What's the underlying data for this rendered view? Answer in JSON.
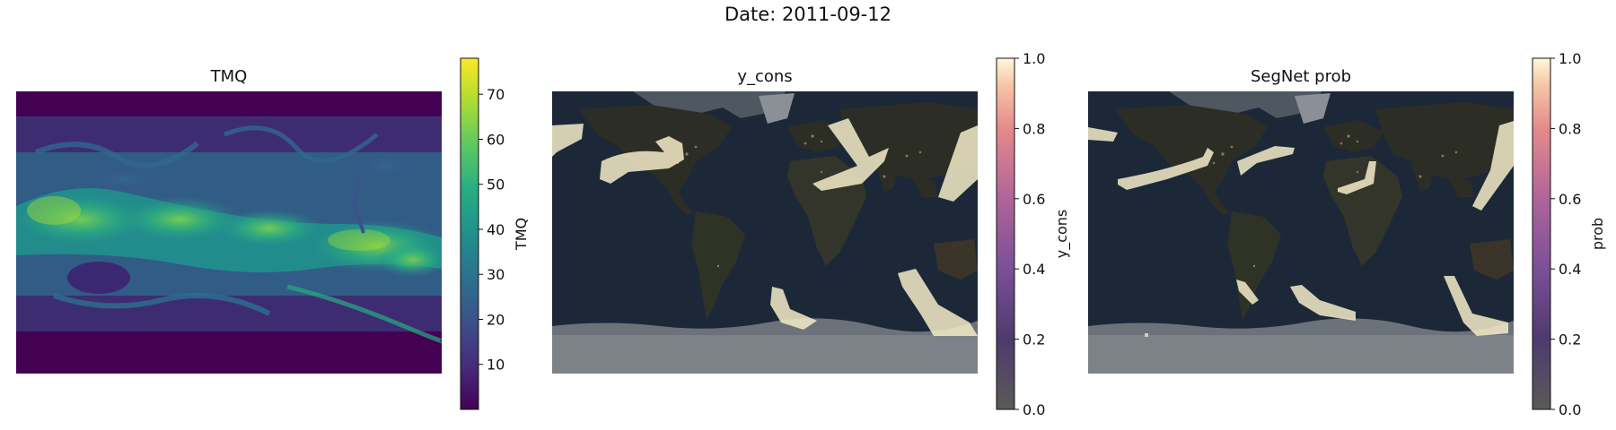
{
  "figure": {
    "suptitle": "Date: 2011-09-12"
  },
  "chart_data": [
    {
      "type": "heatmap",
      "title": "TMQ",
      "colormap": "viridis",
      "colorbar": {
        "label": "TMQ",
        "range": [
          0,
          78
        ],
        "ticks": [
          10,
          20,
          30,
          40,
          50,
          60,
          70
        ]
      },
      "grid": false,
      "axes_visible": false
    },
    {
      "type": "heatmap",
      "title": "y_cons",
      "background": "night-earth-map",
      "colormap": "magma-overlay",
      "colorbar": {
        "label": "y_cons",
        "range": [
          0.0,
          1.0
        ],
        "ticks": [
          "0.0",
          "0.2",
          "0.4",
          "0.6",
          "0.8",
          "1.0"
        ]
      },
      "grid": false,
      "axes_visible": false
    },
    {
      "type": "heatmap",
      "title": "SegNet prob",
      "background": "night-earth-map",
      "colormap": "magma-overlay",
      "colorbar": {
        "label": "prob",
        "range": [
          0.0,
          1.0
        ],
        "ticks": [
          "0.0",
          "0.2",
          "0.4",
          "0.6",
          "0.8",
          "1.0"
        ]
      },
      "grid": false,
      "axes_visible": false
    }
  ],
  "colors": {
    "viridis": [
      "#440154",
      "#472c7a",
      "#3b518b",
      "#2c718e",
      "#21908d",
      "#27ad81",
      "#5cc863",
      "#aadc32",
      "#fde725"
    ],
    "magma_overlay": [
      "#5a5a5a",
      "#4e3a6e",
      "#7b4f97",
      "#b0649a",
      "#e58a8b",
      "#f5c4a5",
      "#fff7dc"
    ],
    "ocean": "#1c2838",
    "land": "#2c2e26",
    "ice": "#8a8f96",
    "ar_band": "#f5ecc9"
  }
}
